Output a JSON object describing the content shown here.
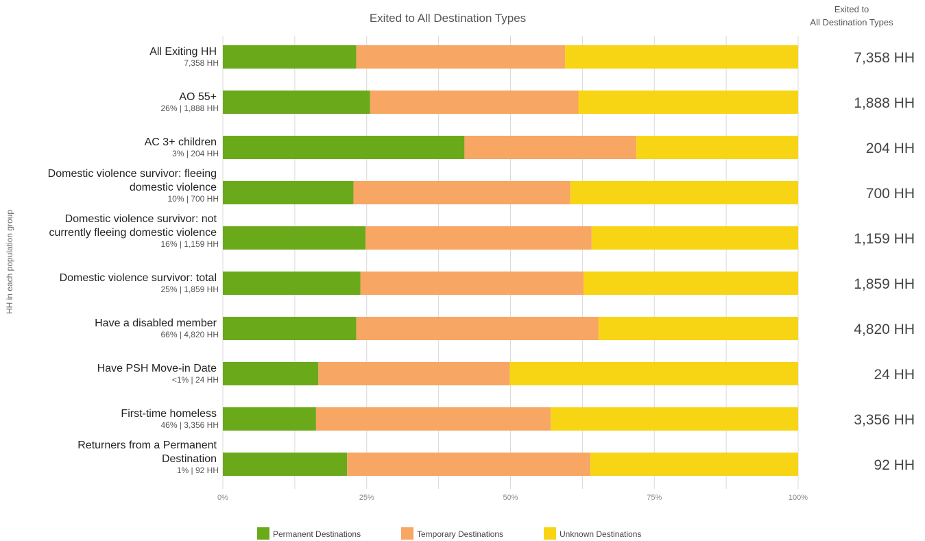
{
  "chart_data": {
    "type": "bar",
    "orientation": "horizontal",
    "stacked": true,
    "percent_scale": true,
    "title": "Exited to All Destination Types",
    "ylabel": "HH in each population group",
    "xlim": [
      0,
      100
    ],
    "x_ticks": [
      "0%",
      "25%",
      "50%",
      "75%",
      "100%"
    ],
    "grid": true,
    "legend_position": "bottom",
    "right_column_header": [
      "Exited to",
      "All Destination Types"
    ],
    "categories": [
      {
        "label": [
          "All Exiting HH"
        ],
        "sublabel": "7,358 HH",
        "total": "7,358 HH"
      },
      {
        "label": [
          "AO 55+"
        ],
        "sublabel": "26% | 1,888 HH",
        "total": "1,888 HH"
      },
      {
        "label": [
          "AC 3+ children"
        ],
        "sublabel": "3% | 204 HH",
        "total": "204 HH"
      },
      {
        "label": [
          "Domestic violence survivor: fleeing",
          "domestic violence"
        ],
        "sublabel": "10% | 700 HH",
        "total": "700 HH"
      },
      {
        "label": [
          "Domestic violence survivor: not",
          "currently fleeing domestic violence"
        ],
        "sublabel": "16% | 1,159 HH",
        "total": "1,159 HH"
      },
      {
        "label": [
          "Domestic violence survivor: total"
        ],
        "sublabel": "25% | 1,859 HH",
        "total": "1,859 HH"
      },
      {
        "label": [
          "Have a disabled member"
        ],
        "sublabel": "66% | 4,820 HH",
        "total": "4,820 HH"
      },
      {
        "label": [
          "Have PSH Move-in Date"
        ],
        "sublabel": "<1% | 24 HH",
        "total": "24 HH"
      },
      {
        "label": [
          "First-time homeless"
        ],
        "sublabel": "46% | 3,356 HH",
        "total": "3,356 HH"
      },
      {
        "label": [
          "Returners from a Permanent",
          "Destination"
        ],
        "sublabel": "1% | 92 HH",
        "total": "92 HH"
      }
    ],
    "series": [
      {
        "name": "Permanent Destinations",
        "color": "#6aaa1a",
        "values": [
          23.2,
          25.6,
          42.0,
          22.7,
          24.8,
          23.9,
          23.2,
          16.6,
          16.2,
          21.6
        ]
      },
      {
        "name": "Temporary Destinations",
        "color": "#f7a664",
        "values": [
          36.3,
          36.2,
          29.9,
          37.7,
          39.3,
          38.8,
          42.1,
          33.3,
          40.8,
          42.3
        ]
      },
      {
        "name": "Unknown Destinations",
        "color": "#f7d514",
        "values": [
          40.5,
          38.2,
          28.1,
          39.6,
          35.9,
          37.3,
          34.7,
          50.1,
          43.0,
          36.1
        ]
      }
    ]
  }
}
